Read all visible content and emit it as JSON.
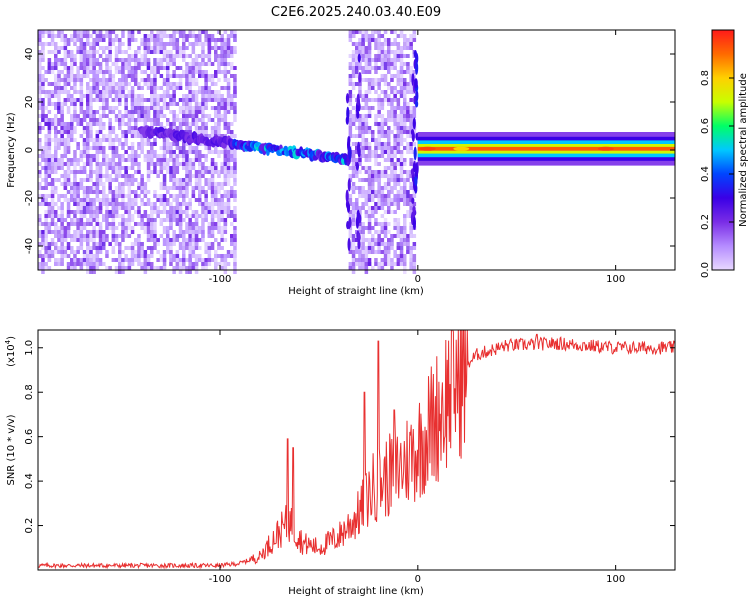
{
  "title": "C2E6.2025.240.03.40.E09",
  "chart_data": [
    {
      "type": "heatmap",
      "name": "spectrogram",
      "xlabel": "Height of straight line (km)",
      "ylabel": "Frequency (Hz)",
      "xlim": [
        -192,
        130
      ],
      "ylim": [
        -50,
        50
      ],
      "x_ticks": [
        -100,
        0,
        100
      ],
      "x_tick_labels": [
        "-100",
        "0",
        "100"
      ],
      "y_ticks": [
        -40,
        -20,
        0,
        20,
        40
      ],
      "y_tick_labels": [
        "-40",
        "-20",
        "0",
        "20",
        "40"
      ],
      "colorbar": {
        "label": "Normalized spectral amplitude",
        "range": [
          0,
          1
        ],
        "ticks": [
          0,
          0.2,
          0.4,
          0.6,
          0.8
        ],
        "tick_labels": [
          "0.0",
          "0.2",
          "0.4",
          "0.6",
          "0.8"
        ],
        "colormap": [
          "#e8d8ff",
          "#b58cff",
          "#7a2de6",
          "#3a00e6",
          "#0044ff",
          "#00c8ff",
          "#00ff66",
          "#c8ff00",
          "#ffd000",
          "#ff6a00",
          "#ff1a1a"
        ]
      },
      "regions": [
        {
          "label": "broadband noise",
          "x_range": [
            -192,
            -92
          ],
          "y_range": [
            -50,
            50
          ]
        },
        {
          "label": "decreasing tone",
          "x_range": [
            -140,
            -35
          ],
          "freq_start": 8,
          "freq_end": -4
        },
        {
          "label": "broadband noise",
          "x_range": [
            -35,
            -2
          ],
          "y_range": [
            -50,
            50
          ]
        },
        {
          "label": "steady tone",
          "x_range": [
            0,
            130
          ],
          "freq": 0.5,
          "peak_amplitude": 0.95
        }
      ]
    },
    {
      "type": "line",
      "name": "snr",
      "xlabel": "Height of straight line (km)",
      "ylabel": "SNR (10 * v/v)",
      "y_multiplier_label": "(x10",
      "y_multiplier_exp": "4",
      "y_multiplier_close": ")",
      "xlim": [
        -192,
        130
      ],
      "ylim": [
        0,
        1.08
      ],
      "x_ticks": [
        -100,
        0,
        100
      ],
      "x_tick_labels": [
        "-100",
        "0",
        "100"
      ],
      "y_ticks": [
        0.2,
        0.4,
        0.6,
        0.8,
        1.0
      ],
      "y_tick_labels": [
        "0.2",
        "0.4",
        "0.6",
        "0.8",
        "1.0"
      ],
      "line_color": "#e83030",
      "trend_points": [
        {
          "x": -192,
          "y": 0.02
        },
        {
          "x": -100,
          "y": 0.02
        },
        {
          "x": -90,
          "y": 0.03
        },
        {
          "x": -80,
          "y": 0.06
        },
        {
          "x": -72,
          "y": 0.15
        },
        {
          "x": -65,
          "y": 0.22
        },
        {
          "x": -58,
          "y": 0.12
        },
        {
          "x": -50,
          "y": 0.1
        },
        {
          "x": -40,
          "y": 0.15
        },
        {
          "x": -30,
          "y": 0.25
        },
        {
          "x": -22,
          "y": 0.38
        },
        {
          "x": -10,
          "y": 0.45
        },
        {
          "x": 0,
          "y": 0.55
        },
        {
          "x": 10,
          "y": 0.7
        },
        {
          "x": 20,
          "y": 0.88
        },
        {
          "x": 30,
          "y": 0.97
        },
        {
          "x": 45,
          "y": 1.01
        },
        {
          "x": 70,
          "y": 1.02
        },
        {
          "x": 100,
          "y": 1.0
        },
        {
          "x": 130,
          "y": 1.0
        }
      ],
      "spikes": [
        {
          "x": -66,
          "y": 0.59
        },
        {
          "x": -63,
          "y": 0.55
        },
        {
          "x": -27,
          "y": 0.8
        },
        {
          "x": -20,
          "y": 1.03
        },
        {
          "x": -12,
          "y": 0.72
        },
        {
          "x": 60,
          "y": 1.06
        }
      ]
    }
  ]
}
